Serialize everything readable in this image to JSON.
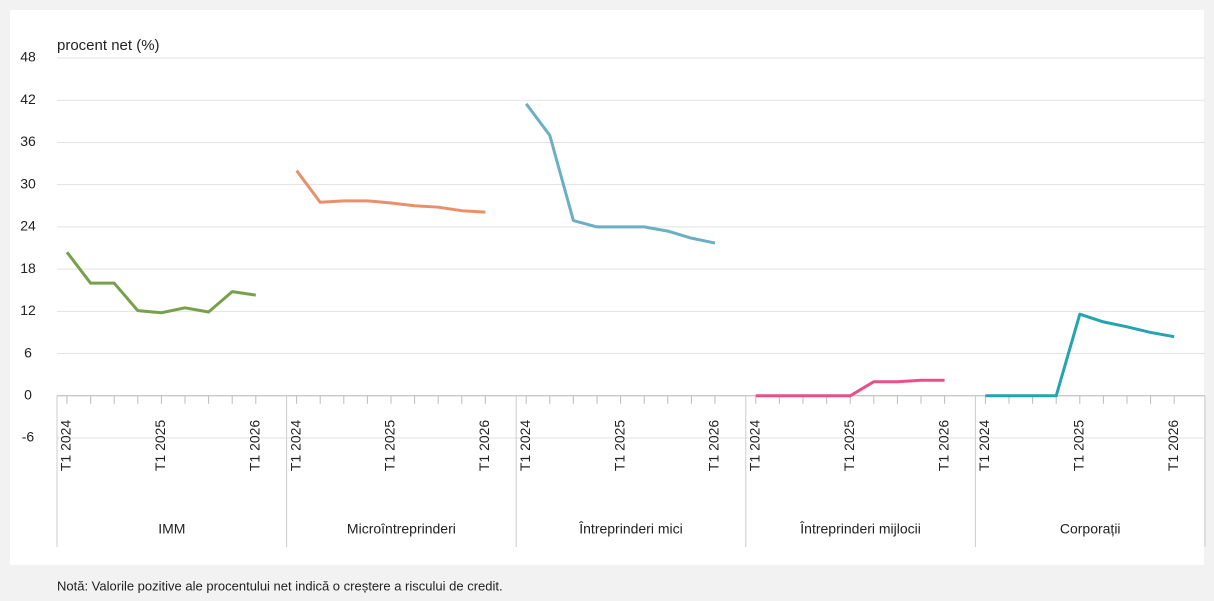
{
  "chart_data": {
    "type": "line",
    "y_label": "procent net (%)",
    "note": "Notă: Valorile pozitive ale procentului net indică o creștere a riscului de credit.",
    "categories": [
      "T1 2024",
      null,
      null,
      null,
      "T1 2025",
      null,
      null,
      null,
      "T1 2026"
    ],
    "ylim": [
      -6,
      48
    ],
    "yticks": [
      -6,
      0,
      6,
      12,
      18,
      24,
      30,
      36,
      42,
      48
    ],
    "grid": true,
    "series": [
      {
        "name": "IMM",
        "color": "#76a04a",
        "values": [
          20.4,
          16,
          16,
          12.1,
          11.8,
          12.5,
          11.9,
          14.8,
          14.3
        ]
      },
      {
        "name": "Microîntreprinderi",
        "color": "#e8906c",
        "values": [
          32,
          27.5,
          27.7,
          27.7,
          27.4,
          27.0,
          26.8,
          26.3,
          26.1
        ]
      },
      {
        "name": "Întreprinderi mici",
        "color": "#6aafc4",
        "values": [
          41.5,
          37,
          24.9,
          24,
          24,
          24,
          23.4,
          22.4,
          21.7
        ]
      },
      {
        "name": "Întreprinderi mijlocii",
        "color": "#e8508a",
        "values": [
          0,
          0,
          0,
          0,
          0,
          2.0,
          2.0,
          2.2,
          2.2
        ]
      },
      {
        "name": "Corporații",
        "color": "#26a3b0",
        "values": [
          0,
          0,
          0,
          0,
          11.6,
          10.5,
          9.8,
          9.0,
          8.4
        ]
      }
    ]
  }
}
